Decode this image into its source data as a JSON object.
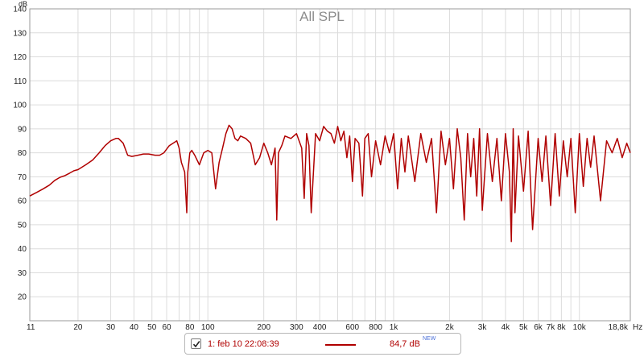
{
  "chart_data": {
    "type": "line",
    "title": "All SPL",
    "ylabel": "dB",
    "xunit": "Hz",
    "xscale": "log",
    "xlim": [
      11,
      18800
    ],
    "ylim": [
      10,
      140
    ],
    "grid": true,
    "yticks": [
      "20",
      "30",
      "40",
      "50",
      "60",
      "70",
      "80",
      "90",
      "100",
      "110",
      "120",
      "130",
      "140"
    ],
    "xticks": [
      {
        "value": 11,
        "label": "11"
      },
      {
        "value": 20,
        "label": "20"
      },
      {
        "value": 30,
        "label": "30"
      },
      {
        "value": 40,
        "label": "40"
      },
      {
        "value": 50,
        "label": "50"
      },
      {
        "value": 60,
        "label": "60"
      },
      {
        "value": 80,
        "label": "80"
      },
      {
        "value": 100,
        "label": "100"
      },
      {
        "value": 200,
        "label": "200"
      },
      {
        "value": 300,
        "label": "300"
      },
      {
        "value": 400,
        "label": "400"
      },
      {
        "value": 600,
        "label": "600"
      },
      {
        "value": 800,
        "label": "800"
      },
      {
        "value": 1000,
        "label": "1k"
      },
      {
        "value": 2000,
        "label": "2k"
      },
      {
        "value": 3000,
        "label": "3k"
      },
      {
        "value": 4000,
        "label": "4k"
      },
      {
        "value": 5000,
        "label": "5k"
      },
      {
        "value": 6000,
        "label": "6k"
      },
      {
        "value": 7000,
        "label": "7k"
      },
      {
        "value": 8000,
        "label": "8k"
      },
      {
        "value": 10000,
        "label": "10k"
      },
      {
        "value": 18800,
        "label": "18,8k"
      }
    ],
    "series": [
      {
        "name": "1: feb 10 22:08:39",
        "color": "#b00000",
        "x": [
          11,
          12,
          13,
          14,
          15,
          16,
          17,
          18,
          19,
          20,
          22,
          24,
          26,
          28,
          30,
          32,
          33,
          35,
          37,
          39,
          42,
          45,
          48,
          52,
          55,
          58,
          62,
          65,
          68,
          70,
          72,
          75,
          77,
          78,
          80,
          82,
          85,
          90,
          95,
          100,
          105,
          110,
          115,
          120,
          125,
          130,
          135,
          140,
          145,
          150,
          160,
          170,
          180,
          190,
          200,
          210,
          220,
          230,
          235,
          240,
          250,
          260,
          280,
          300,
          320,
          330,
          340,
          350,
          360,
          380,
          400,
          420,
          440,
          460,
          480,
          500,
          520,
          540,
          560,
          580,
          600,
          620,
          650,
          680,
          700,
          730,
          760,
          800,
          850,
          900,
          950,
          1000,
          1050,
          1100,
          1150,
          1200,
          1300,
          1400,
          1500,
          1600,
          1700,
          1800,
          1900,
          2000,
          2100,
          2200,
          2300,
          2400,
          2500,
          2600,
          2700,
          2800,
          2900,
          3000,
          3200,
          3400,
          3600,
          3800,
          4000,
          4200,
          4300,
          4400,
          4500,
          4700,
          5000,
          5300,
          5600,
          6000,
          6300,
          6600,
          7000,
          7400,
          7800,
          8200,
          8600,
          9000,
          9500,
          10000,
          10500,
          11000,
          11500,
          12000,
          13000,
          14000,
          15000,
          16000,
          17000,
          18000,
          18800
        ],
        "values": [
          62,
          63.5,
          65,
          66.5,
          68.5,
          69.8,
          70.5,
          71.5,
          72.5,
          73,
          75,
          77,
          80,
          83,
          85,
          86,
          86,
          84,
          79,
          78.5,
          79,
          79.5,
          79.5,
          79,
          79,
          80,
          83,
          84,
          85,
          82,
          76,
          72,
          55,
          72,
          80,
          81,
          79,
          75,
          80,
          81,
          80,
          65,
          76,
          82,
          88,
          91.5,
          90,
          86,
          85,
          87,
          86,
          84,
          75,
          78,
          84,
          80,
          75,
          82,
          52,
          80,
          83,
          87,
          86,
          88,
          82,
          61,
          88,
          83,
          55,
          88,
          85,
          91,
          89,
          88,
          84,
          91,
          85,
          89,
          78,
          87,
          68,
          86,
          84,
          62,
          86,
          88,
          70,
          85,
          75,
          87,
          80,
          88,
          65,
          86,
          72,
          87,
          68,
          88,
          76,
          86,
          55,
          89,
          75,
          86,
          65,
          90,
          78,
          52,
          88,
          70,
          86,
          62,
          90,
          56,
          88,
          68,
          86,
          60,
          88,
          72,
          43,
          90,
          55,
          87,
          64,
          89,
          48,
          86,
          68,
          87,
          58,
          88,
          62,
          85,
          70,
          86,
          55,
          88,
          66,
          86,
          74,
          87,
          60,
          85,
          80,
          86,
          78,
          84,
          80
        ],
        "current_value": "84,7 dB",
        "badge": "NEW",
        "visible": true
      }
    ]
  }
}
